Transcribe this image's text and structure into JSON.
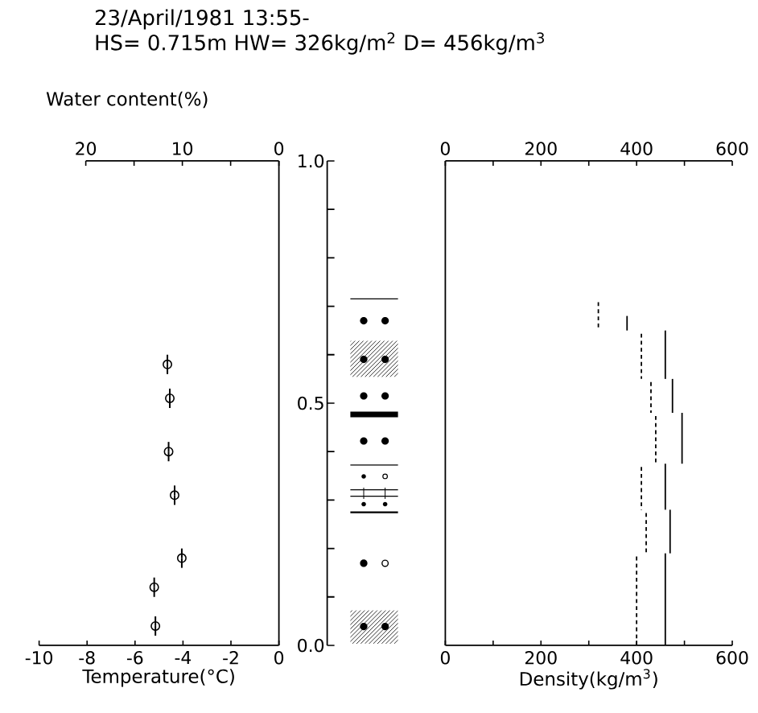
{
  "chart_data": [
    {
      "type": "scatter",
      "title": "23/April/1981  13:55-",
      "subtitle": "HS= 0.715m    HW= 326kg/m$^{2}$  D= 456kg/m$^{3}$",
      "xlabel": "Temperature(°C)",
      "x2label": "Water content(%)",
      "color": "#000000",
      "marker": "circle",
      "x": [
        -4.65,
        -4.55,
        -4.6,
        -4.35,
        -4.05,
        -5.2,
        -5.15
      ],
      "values": [
        0.58,
        0.51,
        0.4,
        0.31,
        0.18,
        0.12,
        0.04
      ],
      "errors": [
        0.02,
        0.02,
        0.02,
        0.02,
        0.02,
        0.02,
        0.02
      ],
      "xlim": [
        -10,
        0
      ],
      "xticks": [
        -10,
        -8,
        -6,
        -4,
        -2,
        0
      ],
      "x2lim": [
        20,
        0
      ],
      "x2ticks": [
        20,
        {
          "value": 15,
          "label": null
        },
        10,
        {
          "value": 5,
          "label": null
        },
        0
      ],
      "ylim": [
        0,
        1
      ],
      "yticks": [
        {
          "value": 0,
          "label": "0.0"
        },
        {
          "value": 0.5,
          "label": "0.5"
        },
        {
          "value": 1,
          "label": "1.0"
        }
      ]
    },
    {
      "type": "line",
      "xlabel": "Density(kg/m$^{3}$)",
      "tick_labels": "x",
      "xlim": [
        0,
        600
      ],
      "xticks": [
        0,
        {
          "value": 100,
          "label": null
        },
        200,
        {
          "value": 300,
          "label": null
        },
        400,
        {
          "value": 500,
          "label": null
        },
        600
      ],
      "x2lim": [
        0,
        600
      ],
      "x2ticks": [
        0,
        {
          "value": 100,
          "label": null
        },
        200,
        {
          "value": 300,
          "label": null
        },
        400,
        {
          "value": 500,
          "label": null
        },
        600
      ],
      "ylim": [
        0,
        1
      ],
      "series": [
        {
          "color": "#000000",
          "line_style": "dashed",
          "x": [
            320,
            320
          ],
          "values": [
            0.715,
            0.65
          ]
        },
        {
          "color": "#000000",
          "line_style": "dashed",
          "x": [
            410,
            410
          ],
          "values": [
            0.65,
            0.55
          ]
        },
        {
          "color": "#000000",
          "line_style": "dashed",
          "x": [
            430,
            430
          ],
          "values": [
            0.55,
            0.48
          ]
        },
        {
          "color": "#000000",
          "line_style": "dashed",
          "x": [
            440,
            440
          ],
          "values": [
            0.48,
            0.375
          ]
        },
        {
          "color": "#000000",
          "line_style": "dashed",
          "x": [
            410,
            410
          ],
          "values": [
            0.375,
            0.28
          ]
        },
        {
          "color": "#000000",
          "line_style": "dashed",
          "x": [
            420,
            420
          ],
          "values": [
            0.28,
            0.19
          ]
        },
        {
          "color": "#000000",
          "line_style": "dashed",
          "x": [
            400,
            400
          ],
          "values": [
            0.19,
            0
          ]
        },
        {
          "color": "#000000",
          "line_style": "solid",
          "x": [
            380,
            380
          ],
          "values": [
            0.68,
            0.65
          ]
        },
        {
          "color": "#000000",
          "line_style": "solid",
          "x": [
            460,
            460
          ],
          "values": [
            0.65,
            0.55
          ]
        },
        {
          "color": "#000000",
          "line_style": "solid",
          "x": [
            475,
            475
          ],
          "values": [
            0.55,
            0.48
          ]
        },
        {
          "color": "#000000",
          "line_style": "solid",
          "x": [
            495,
            495
          ],
          "values": [
            0.48,
            0.375
          ]
        },
        {
          "color": "#000000",
          "line_style": "solid",
          "x": [
            460,
            460
          ],
          "values": [
            0.375,
            0.28
          ]
        },
        {
          "color": "#000000",
          "line_style": "solid",
          "x": [
            470,
            470
          ],
          "values": [
            0.28,
            0.19
          ]
        },
        {
          "color": "#000000",
          "line_style": "solid",
          "x": [
            460,
            460
          ],
          "values": [
            0.19,
            0
          ]
        }
      ]
    }
  ]
}
